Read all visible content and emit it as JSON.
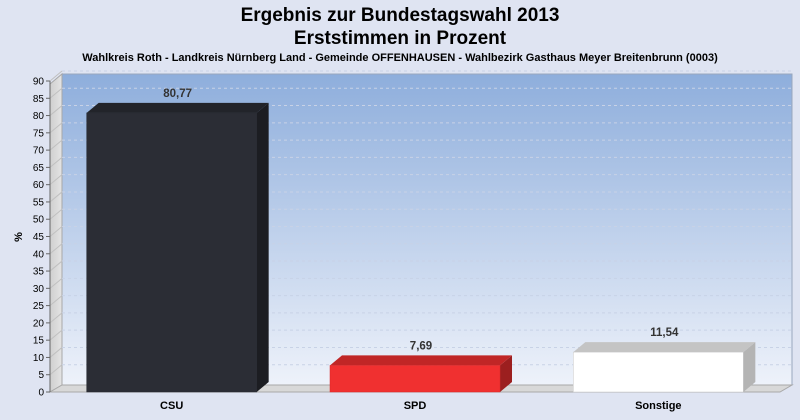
{
  "chart_data": {
    "type": "bar",
    "title": "Ergebnis zur Bundestagswahl 2013",
    "subtitle": "Erststimmen in Prozent",
    "description": "Wahlkreis Roth - Landkreis Nürnberg Land - Gemeinde OFFENHAUSEN - Wahlbezirk Gasthaus Meyer Breitenbrunn (0003)",
    "ylabel": "%",
    "xlabel": "",
    "ylim": [
      0,
      90
    ],
    "yticks": [
      0,
      5,
      10,
      15,
      20,
      25,
      30,
      35,
      40,
      45,
      50,
      55,
      60,
      65,
      70,
      75,
      80,
      85,
      90
    ],
    "categories": [
      "CSU",
      "SPD",
      "Sonstige"
    ],
    "values": [
      80.77,
      7.69,
      11.54
    ],
    "value_labels": [
      "80,77",
      "7,69",
      "11,54"
    ],
    "colors": [
      "#2b2d35",
      "#f03030",
      "#ffffff"
    ],
    "grid": true,
    "legend": "none"
  }
}
